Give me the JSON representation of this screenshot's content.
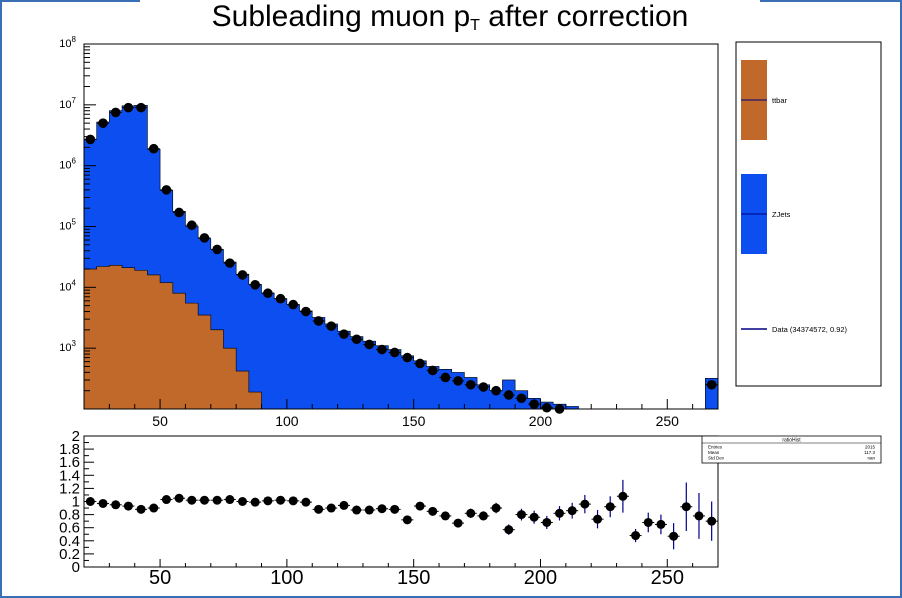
{
  "title": {
    "main": "Subleading muon p",
    "sub": "T",
    "rest": " after correction"
  },
  "chart_data": [
    {
      "type": "bar",
      "name": "main",
      "log_y": true,
      "xlim": [
        20,
        270
      ],
      "ylim": [
        100,
        100000000
      ],
      "x_ticks": [
        50,
        100,
        150,
        200,
        250
      ],
      "y_ticks": [
        {
          "value": 1000,
          "base": "10",
          "exp": "3"
        },
        {
          "value": 10000,
          "base": "10",
          "exp": "4"
        },
        {
          "value": 100000,
          "base": "10",
          "exp": "5"
        },
        {
          "value": 1000000,
          "base": "10",
          "exp": "6"
        },
        {
          "value": 10000000,
          "base": "10",
          "exp": "7"
        },
        {
          "value": 100000000,
          "base": "10",
          "exp": "8"
        }
      ],
      "bin_edges": [
        20,
        25,
        30,
        35,
        40,
        45,
        50,
        55,
        60,
        65,
        70,
        75,
        80,
        85,
        90,
        95,
        100,
        105,
        110,
        115,
        120,
        125,
        130,
        135,
        140,
        145,
        150,
        155,
        160,
        165,
        170,
        175,
        180,
        185,
        190,
        195,
        200,
        205,
        210,
        215,
        220,
        225,
        230,
        235,
        240,
        245,
        250,
        255,
        260,
        265,
        270
      ],
      "stack": [
        {
          "name": "ttbar",
          "color": "#c0692a",
          "values": [
            20000,
            22000,
            23000,
            21000,
            19000,
            16000,
            12000,
            8000,
            5500,
            3500,
            2000,
            1000,
            420,
            190,
            80,
            0,
            0,
            0,
            0,
            0,
            0,
            0,
            0,
            0,
            0,
            0,
            0,
            0,
            0,
            0,
            0,
            0,
            0,
            0,
            0,
            0,
            0,
            0,
            0,
            0,
            0,
            0,
            0,
            0,
            0,
            0,
            0,
            0,
            0,
            0
          ]
        },
        {
          "name": "ZJets",
          "color": "#0c4ef0",
          "values": [
            2700000,
            5200000,
            8000000,
            9600000,
            9800000,
            1850000,
            380000,
            170000,
            95000,
            60000,
            40000,
            25000,
            16000,
            11000,
            8000,
            6500,
            5200,
            4100,
            3200,
            2500,
            1900,
            1550,
            1300,
            1100,
            950,
            750,
            620,
            500,
            450,
            400,
            330,
            250,
            200,
            300,
            200,
            150,
            130,
            120,
            110,
            0,
            0,
            0,
            0,
            0,
            0,
            0,
            0,
            0,
            0,
            320
          ]
        }
      ],
      "data_points": {
        "x": [
          22.5,
          27.5,
          32.5,
          37.5,
          42.5,
          47.5,
          52.5,
          57.5,
          62.5,
          67.5,
          72.5,
          77.5,
          82.5,
          87.5,
          92.5,
          97.5,
          102.5,
          107.5,
          112.5,
          117.5,
          122.5,
          127.5,
          132.5,
          137.5,
          142.5,
          147.5,
          152.5,
          157.5,
          162.5,
          167.5,
          172.5,
          177.5,
          182.5,
          187.5,
          192.5,
          197.5,
          202.5,
          207.5,
          267.5
        ],
        "y": [
          2700000,
          5000000,
          7500000,
          9000000,
          9000000,
          1900000,
          400000,
          170000,
          105000,
          65000,
          42000,
          25000,
          16000,
          11000,
          8000,
          6500,
          5200,
          4000,
          2800,
          2300,
          1700,
          1400,
          1150,
          950,
          850,
          700,
          560,
          430,
          330,
          290,
          250,
          230,
          200,
          170,
          150,
          120,
          105,
          100,
          250
        ]
      },
      "legend": [
        {
          "label": "ttbar",
          "kind": "box",
          "color": "#c0692a"
        },
        {
          "label": "ZJets",
          "kind": "box",
          "color": "#0c4ef0"
        },
        {
          "label": "Data (34374572, 0.92)",
          "kind": "line",
          "color": "#000080"
        }
      ]
    },
    {
      "type": "scatter",
      "name": "ratio",
      "xlim": [
        20,
        270
      ],
      "ylim": [
        0,
        2
      ],
      "x_ticks": [
        50,
        100,
        150,
        200,
        250
      ],
      "y_ticks": [
        "0",
        "0.2",
        "0.4",
        "0.6",
        "0.8",
        "1",
        "1.2",
        "1.4",
        "1.6",
        "1.8",
        "2"
      ],
      "x": [
        22.5,
        27.5,
        32.5,
        37.5,
        42.5,
        47.5,
        52.5,
        57.5,
        62.5,
        67.5,
        72.5,
        77.5,
        82.5,
        87.5,
        92.5,
        97.5,
        102.5,
        107.5,
        112.5,
        117.5,
        122.5,
        127.5,
        132.5,
        137.5,
        142.5,
        147.5,
        152.5,
        157.5,
        162.5,
        167.5,
        172.5,
        177.5,
        182.5,
        187.5,
        192.5,
        197.5,
        202.5,
        207.5,
        212.5,
        217.5,
        222.5,
        227.5,
        232.5,
        237.5,
        242.5,
        247.5,
        252.5,
        257.5,
        262.5,
        267.5
      ],
      "y": [
        1.0,
        0.97,
        0.95,
        0.93,
        0.88,
        0.9,
        1.03,
        1.05,
        1.02,
        1.02,
        1.02,
        1.03,
        1.0,
        0.99,
        1.01,
        1.02,
        1.01,
        0.99,
        0.88,
        0.9,
        0.94,
        0.87,
        0.87,
        0.89,
        0.88,
        0.72,
        0.93,
        0.85,
        0.78,
        0.67,
        0.82,
        0.78,
        0.9,
        0.57,
        0.8,
        0.76,
        0.68,
        0.82,
        0.86,
        0.96,
        0.73,
        0.92,
        1.08,
        0.48,
        0.68,
        0.65,
        0.47,
        0.92,
        0.78,
        0.7
      ],
      "err": [
        0.01,
        0.01,
        0.01,
        0.01,
        0.01,
        0.01,
        0.01,
        0.01,
        0.01,
        0.01,
        0.01,
        0.01,
        0.02,
        0.02,
        0.02,
        0.02,
        0.02,
        0.02,
        0.03,
        0.03,
        0.03,
        0.03,
        0.04,
        0.04,
        0.04,
        0.05,
        0.05,
        0.06,
        0.06,
        0.06,
        0.07,
        0.07,
        0.08,
        0.08,
        0.09,
        0.1,
        0.1,
        0.11,
        0.12,
        0.14,
        0.14,
        0.16,
        0.25,
        0.1,
        0.15,
        0.15,
        0.2,
        0.37,
        0.35,
        0.3
      ],
      "stats_box": {
        "title": "ratioHist",
        "rows": [
          {
            "label": "Entries",
            "value": "2015"
          },
          {
            "label": "Mean",
            "value": "117.3"
          },
          {
            "label": "Std Dev",
            "value": "nan"
          }
        ]
      }
    }
  ]
}
